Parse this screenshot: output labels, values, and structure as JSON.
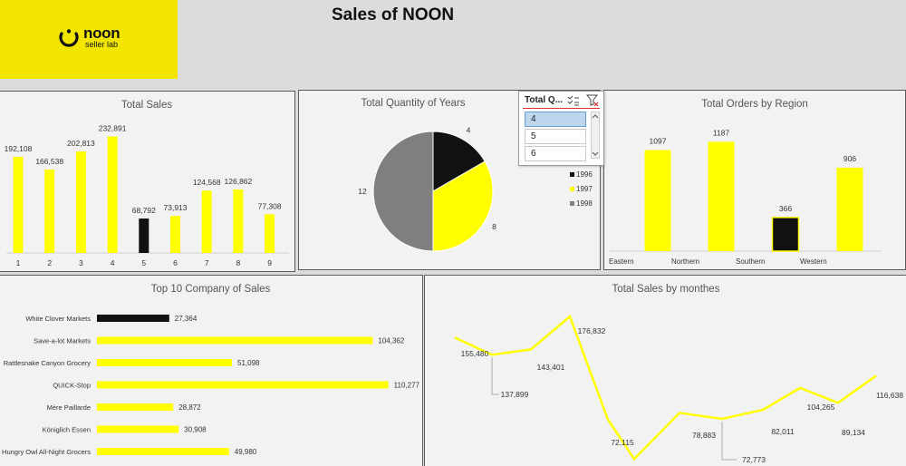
{
  "header": {
    "brand": "noon",
    "brand_sub": "seller lab",
    "title": "Sales of NOON"
  },
  "colors": {
    "yellow": "#ffff00",
    "black": "#111111",
    "gray": "#7f7f7f",
    "logo_bg": "#f2e600"
  },
  "slicer": {
    "title": "Total Q...",
    "items": [
      "4",
      "5",
      "6"
    ],
    "selected": "4",
    "icons": [
      "multi-select-icon",
      "clear-filter-icon"
    ]
  },
  "chart_data": [
    {
      "id": "total-sales",
      "type": "bar",
      "title": "Total Sales",
      "categories": [
        "1",
        "2",
        "3",
        "4",
        "5",
        "6",
        "7",
        "8",
        "9"
      ],
      "values": [
        192108,
        166538,
        202813,
        232891,
        68792,
        73913,
        124568,
        126862,
        77308
      ],
      "labels": [
        "192,108",
        "166,538",
        "202,813",
        "232,891",
        "68,792",
        "73,913",
        "124,568",
        "126,862",
        "77,308"
      ],
      "highlight_index": 4
    },
    {
      "id": "total-quantity-years",
      "type": "pie",
      "title": "Total Quantity of Years",
      "categories": [
        "1996",
        "1997",
        "1998"
      ],
      "values": [
        4,
        8,
        12
      ],
      "legend_position": "right"
    },
    {
      "id": "orders-by-region",
      "type": "bar",
      "title": "Total Orders by Region",
      "categories": [
        "Eastern",
        "Northern",
        "Southern",
        "Western"
      ],
      "values": [
        1097,
        1187,
        366,
        906
      ],
      "highlight_index": 2
    },
    {
      "id": "top-companies",
      "type": "bar",
      "orientation": "horizontal",
      "title": "Top 10 Company of Sales",
      "categories": [
        "White Clover Markets",
        "Save-a-lot Markets",
        "Rattlesnake Canyon Grocery",
        "QUICK-Stop",
        "Mère Paillarde",
        "Königlich Essen",
        "Hungry Owl All-Night Grocers"
      ],
      "values": [
        27364,
        104362,
        51098,
        110277,
        28872,
        30908,
        49980
      ],
      "labels": [
        "27,364",
        "104,362",
        "51,098",
        "110,277",
        "28,872",
        "30,908",
        "49,980"
      ],
      "highlight_index": 0
    },
    {
      "id": "sales-by-months",
      "type": "line",
      "title": "Total  Sales by monthes",
      "values": [
        155480,
        137899,
        143401,
        176832,
        72115,
        32000,
        78883,
        72773,
        82011,
        104265,
        89134,
        116638
      ],
      "labels": [
        "155,480",
        "137,899",
        "143,401",
        "176,832",
        "72,115",
        "",
        "78,883",
        "72,773",
        "82,011",
        "104,265",
        "89,134",
        "116,638"
      ]
    }
  ]
}
